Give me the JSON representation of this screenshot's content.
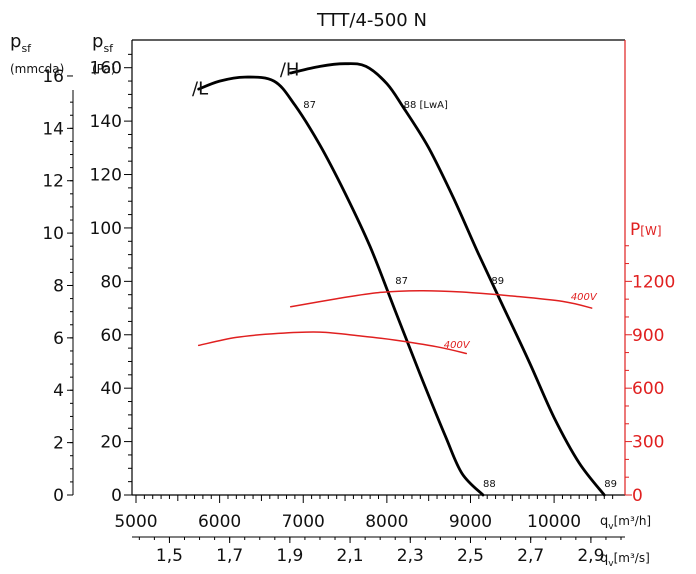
{
  "chart_data": {
    "type": "line",
    "title": "TTT/4-500 N",
    "colors": {
      "fan": "#000000",
      "power": "#e02020"
    },
    "axes": {
      "left_outer": {
        "label_main": "p",
        "label_sub": "sf",
        "unit": "(mmcda)",
        "ticks": [
          0,
          2,
          4,
          6,
          8,
          10,
          12,
          14,
          16
        ]
      },
      "left_inner": {
        "label_main": "p",
        "label_sub": "sf",
        "unit": "(Pa)",
        "ylim": [
          0,
          170
        ],
        "ticks": [
          0,
          20,
          40,
          60,
          80,
          100,
          120,
          140,
          160
        ]
      },
      "right": {
        "label": "P",
        "unit": "[W]",
        "ticks": [
          0,
          300,
          600,
          900,
          1200
        ],
        "note": "0 W at 0 Pa, 1200 W at 80 Pa"
      },
      "bottom_m3h": {
        "label": "q",
        "sub": "v",
        "unit": "[m³/h]",
        "xlim": [
          5000,
          10800
        ],
        "ticks": [
          5000,
          6000,
          7000,
          8000,
          9000,
          10000
        ]
      },
      "bottom_m3s": {
        "label": "q",
        "sub": "v",
        "unit": "[m³/s]",
        "ticks": [
          "1,5",
          "1,7",
          "1,9",
          "2,1",
          "2,3",
          "2,5",
          "2,7",
          "2,9"
        ]
      }
    },
    "series": [
      {
        "name": "/L",
        "axis": "pressure",
        "points": [
          [
            5750,
            152
          ],
          [
            6000,
            155
          ],
          [
            6300,
            156.5
          ],
          [
            6650,
            155
          ],
          [
            6900,
            146
          ],
          [
            7200,
            131
          ],
          [
            7500,
            113
          ],
          [
            7800,
            93
          ],
          [
            8100,
            69
          ],
          [
            8400,
            45
          ],
          [
            8700,
            22
          ],
          [
            8900,
            8
          ],
          [
            9150,
            0
          ]
        ]
      },
      {
        "name": "/H",
        "axis": "pressure",
        "points": [
          [
            6850,
            158
          ],
          [
            7200,
            160.5
          ],
          [
            7500,
            161.5
          ],
          [
            7750,
            160.5
          ],
          [
            8000,
            154
          ],
          [
            8200,
            145
          ],
          [
            8500,
            130
          ],
          [
            8800,
            111
          ],
          [
            9100,
            90
          ],
          [
            9400,
            70
          ],
          [
            9700,
            50
          ],
          [
            10000,
            29
          ],
          [
            10300,
            12
          ],
          [
            10600,
            0
          ]
        ]
      },
      {
        "name": "400V",
        "axis": "power",
        "points": [
          [
            5750,
            56
          ],
          [
            6200,
            59
          ],
          [
            6700,
            60.5
          ],
          [
            7200,
            61
          ],
          [
            7700,
            59.5
          ],
          [
            8100,
            58
          ],
          [
            8600,
            55.5
          ],
          [
            8950,
            53
          ]
        ]
      },
      {
        "name": "400V",
        "axis": "power",
        "points": [
          [
            6850,
            70.5
          ],
          [
            7400,
            73.5
          ],
          [
            7900,
            75.8
          ],
          [
            8400,
            76.5
          ],
          [
            8900,
            76
          ],
          [
            9500,
            74.5
          ],
          [
            10100,
            72.5
          ],
          [
            10450,
            70
          ]
        ]
      }
    ],
    "data_labels": [
      {
        "text": "87",
        "x": 7000,
        "y": 145
      },
      {
        "text": "88 [LwA]",
        "x": 8200,
        "y": 145
      },
      {
        "text": "87",
        "x": 8100,
        "y": 79
      },
      {
        "text": "89",
        "x": 9250,
        "y": 79
      },
      {
        "text": "88",
        "x": 9150,
        "y": 3
      },
      {
        "text": "89",
        "x": 10600,
        "y": 3
      }
    ],
    "curve_labels": [
      {
        "text": "/L",
        "x": 5670,
        "y": 150
      },
      {
        "text": "/H",
        "x": 6720,
        "y": 157
      }
    ],
    "power_labels": [
      {
        "text": "400V",
        "x": 10200,
        "y": 73
      },
      {
        "text": "400V",
        "x": 8680,
        "y": 55
      }
    ]
  }
}
